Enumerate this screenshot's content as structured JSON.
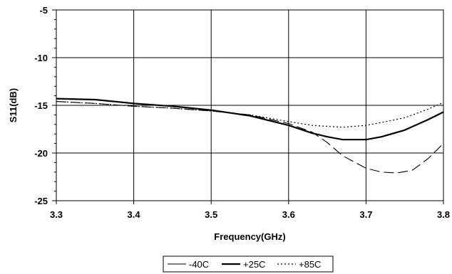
{
  "chart_data": {
    "type": "line",
    "title": "",
    "xlabel": "Frequency(GHz)",
    "ylabel": "S11(dB)",
    "xlim": [
      3.3,
      3.8
    ],
    "ylim": [
      -25,
      -5
    ],
    "xticks": [
      3.3,
      3.4,
      3.5,
      3.6,
      3.7,
      3.8
    ],
    "xtick_labels": [
      "3.3",
      "3.4",
      "3.5",
      "3.6",
      "3.7",
      "3.8"
    ],
    "yticks": [
      -5,
      -10,
      -15,
      -20,
      -25
    ],
    "ytick_labels": [
      "-5",
      "-10",
      "-15",
      "-20",
      "-25"
    ],
    "grid": true,
    "legend_position": "bottom",
    "series": [
      {
        "name": "-40C",
        "line_style": "dashed",
        "x": [
          3.3,
          3.35,
          3.4,
          3.45,
          3.5,
          3.55,
          3.6,
          3.63,
          3.65,
          3.67,
          3.7,
          3.72,
          3.74,
          3.76,
          3.78,
          3.8
        ],
        "values": [
          -14.6,
          -14.8,
          -15.1,
          -15.3,
          -15.6,
          -16.0,
          -16.9,
          -17.8,
          -18.9,
          -20.3,
          -21.6,
          -22.0,
          -22.1,
          -21.8,
          -20.6,
          -19.0
        ]
      },
      {
        "name": "+25C",
        "line_style": "solid",
        "x": [
          3.3,
          3.35,
          3.4,
          3.45,
          3.5,
          3.55,
          3.6,
          3.63,
          3.65,
          3.67,
          3.7,
          3.72,
          3.75,
          3.78,
          3.8
        ],
        "values": [
          -14.3,
          -14.4,
          -14.8,
          -15.1,
          -15.5,
          -16.1,
          -17.1,
          -17.9,
          -18.3,
          -18.6,
          -18.6,
          -18.3,
          -17.6,
          -16.5,
          -15.7
        ]
      },
      {
        "name": "+85C",
        "line_style": "dotted",
        "x": [
          3.3,
          3.35,
          3.4,
          3.45,
          3.5,
          3.55,
          3.6,
          3.63,
          3.65,
          3.67,
          3.7,
          3.72,
          3.75,
          3.78,
          3.8
        ],
        "values": [
          -14.6,
          -14.8,
          -15.1,
          -15.3,
          -15.6,
          -16.0,
          -16.7,
          -17.1,
          -17.2,
          -17.3,
          -17.1,
          -16.8,
          -16.3,
          -15.4,
          -14.7
        ]
      }
    ]
  }
}
